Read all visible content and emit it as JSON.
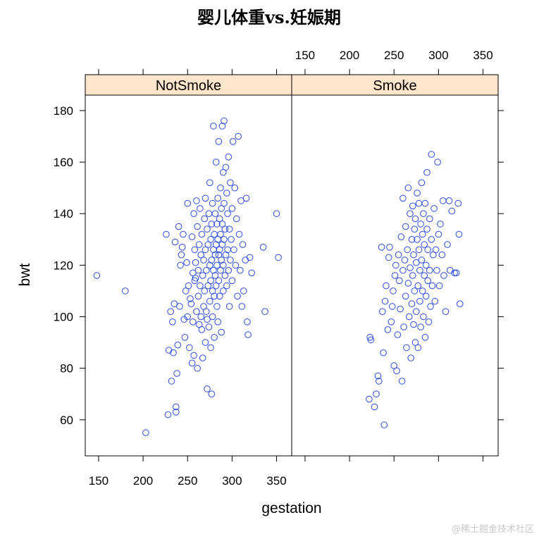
{
  "chart_data": {
    "type": "scatter",
    "title": "婴儿体重vs.妊娠期",
    "xlabel": "gestation",
    "ylabel": "bwt",
    "xlim": [
      135,
      367
    ],
    "ylim": [
      46,
      186
    ],
    "x_ticks": [
      150,
      200,
      250,
      300,
      350
    ],
    "y_ticks": [
      60,
      80,
      100,
      120,
      140,
      160,
      180
    ],
    "grid": false,
    "colors": {
      "points": "#2b4ce0",
      "strip": "#ffe5cc",
      "frame": "#000000"
    },
    "panels": [
      {
        "name": "NotSmoke",
        "points": [
          [
            148,
            116
          ],
          [
            180,
            110
          ],
          [
            203,
            55
          ],
          [
            226,
            132
          ],
          [
            228,
            62
          ],
          [
            229,
            87
          ],
          [
            231,
            102
          ],
          [
            232,
            75
          ],
          [
            233,
            98
          ],
          [
            234,
            86
          ],
          [
            235,
            105
          ],
          [
            236,
            129
          ],
          [
            237,
            65
          ],
          [
            237,
            63
          ],
          [
            238,
            78
          ],
          [
            239,
            89
          ],
          [
            240,
            135
          ],
          [
            241,
            104
          ],
          [
            242,
            120
          ],
          [
            243,
            124
          ],
          [
            244,
            127
          ],
          [
            245,
            132
          ],
          [
            246,
            99
          ],
          [
            247,
            92
          ],
          [
            248,
            110
          ],
          [
            249,
            121
          ],
          [
            250,
            100
          ],
          [
            250,
            144
          ],
          [
            251,
            112
          ],
          [
            252,
            88
          ],
          [
            253,
            107
          ],
          [
            254,
            105
          ],
          [
            255,
            131
          ],
          [
            255,
            82
          ],
          [
            256,
            117
          ],
          [
            256,
            98
          ],
          [
            257,
            140
          ],
          [
            257,
            85
          ],
          [
            258,
            126
          ],
          [
            258,
            114
          ],
          [
            259,
            115
          ],
          [
            259,
            121
          ],
          [
            260,
            145
          ],
          [
            260,
            102
          ],
          [
            261,
            135
          ],
          [
            261,
            80
          ],
          [
            262,
            108
          ],
          [
            262,
            118
          ],
          [
            263,
            128
          ],
          [
            263,
            97
          ],
          [
            264,
            142
          ],
          [
            264,
            112
          ],
          [
            265,
            100
          ],
          [
            265,
            124
          ],
          [
            266,
            95
          ],
          [
            266,
            132
          ],
          [
            267,
            116
          ],
          [
            267,
            84
          ],
          [
            268,
            122
          ],
          [
            268,
            104
          ],
          [
            269,
            138
          ],
          [
            269,
            110
          ],
          [
            270,
            126
          ],
          [
            270,
            90
          ],
          [
            270,
            146
          ],
          [
            271,
            118
          ],
          [
            271,
            102
          ],
          [
            272,
            134
          ],
          [
            272,
            99
          ],
          [
            272,
            72
          ],
          [
            273,
            128
          ],
          [
            273,
            112
          ],
          [
            274,
            140
          ],
          [
            274,
            96
          ],
          [
            275,
            120
          ],
          [
            275,
            106
          ],
          [
            275,
            152
          ],
          [
            276,
            130
          ],
          [
            276,
            114
          ],
          [
            276,
            88
          ],
          [
            277,
            136
          ],
          [
            277,
            122
          ],
          [
            277,
            70
          ],
          [
            278,
            144
          ],
          [
            278,
            110
          ],
          [
            278,
            100
          ],
          [
            279,
            126
          ],
          [
            279,
            118
          ],
          [
            279,
            174
          ],
          [
            280,
            132
          ],
          [
            280,
            108
          ],
          [
            280,
            92
          ],
          [
            281,
            140
          ],
          [
            281,
            124
          ],
          [
            281,
            116
          ],
          [
            282,
            128
          ],
          [
            282,
            112
          ],
          [
            282,
            160
          ],
          [
            283,
            136
          ],
          [
            283,
            120
          ],
          [
            283,
            104
          ],
          [
            284,
            146
          ],
          [
            284,
            130
          ],
          [
            284,
            98
          ],
          [
            285,
            124
          ],
          [
            285,
            114
          ],
          [
            285,
            168
          ],
          [
            286,
            138
          ],
          [
            286,
            126
          ],
          [
            286,
            108
          ],
          [
            287,
            150
          ],
          [
            287,
            132
          ],
          [
            287,
            118
          ],
          [
            288,
            142
          ],
          [
            288,
            122
          ],
          [
            288,
            94
          ],
          [
            289,
            136
          ],
          [
            289,
            128
          ],
          [
            289,
            174
          ],
          [
            290,
            156
          ],
          [
            290,
            120
          ],
          [
            290,
            110
          ],
          [
            291,
            144
          ],
          [
            291,
            130
          ],
          [
            291,
            176
          ],
          [
            292,
            134
          ],
          [
            292,
            116
          ],
          [
            293,
            158
          ],
          [
            293,
            124
          ],
          [
            294,
            148
          ],
          [
            294,
            112
          ],
          [
            295,
            140
          ],
          [
            295,
            126
          ],
          [
            296,
            162
          ],
          [
            296,
            118
          ],
          [
            297,
            134
          ],
          [
            297,
            104
          ],
          [
            298,
            152
          ],
          [
            298,
            122
          ],
          [
            299,
            130
          ],
          [
            300,
            142
          ],
          [
            300,
            114
          ],
          [
            301,
            168
          ],
          [
            302,
            126
          ],
          [
            303,
            150
          ],
          [
            304,
            120
          ],
          [
            305,
            138
          ],
          [
            306,
            108
          ],
          [
            307,
            170
          ],
          [
            308,
            132
          ],
          [
            309,
            118
          ],
          [
            310,
            145
          ],
          [
            311,
            104
          ],
          [
            312,
            128
          ],
          [
            313,
            110
          ],
          [
            315,
            122
          ],
          [
            316,
            146
          ],
          [
            317,
            98
          ],
          [
            318,
            93
          ],
          [
            320,
            123
          ],
          [
            322,
            117
          ],
          [
            335,
            127
          ],
          [
            337,
            102
          ],
          [
            350,
            140
          ],
          [
            352,
            123
          ]
        ]
      },
      {
        "name": "Smoke",
        "points": [
          [
            222,
            68
          ],
          [
            223,
            92
          ],
          [
            224,
            91
          ],
          [
            228,
            65
          ],
          [
            230,
            70
          ],
          [
            232,
            77
          ],
          [
            233,
            75
          ],
          [
            236,
            127
          ],
          [
            237,
            102
          ],
          [
            238,
            86
          ],
          [
            239,
            58
          ],
          [
            240,
            106
          ],
          [
            241,
            112
          ],
          [
            243,
            95
          ],
          [
            244,
            123
          ],
          [
            245,
            127
          ],
          [
            247,
            98
          ],
          [
            248,
            104
          ],
          [
            249,
            110
          ],
          [
            250,
            81
          ],
          [
            251,
            116
          ],
          [
            252,
            120
          ],
          [
            253,
            79
          ],
          [
            254,
            93
          ],
          [
            255,
            124
          ],
          [
            256,
            114
          ],
          [
            257,
            103
          ],
          [
            258,
            131
          ],
          [
            259,
            75
          ],
          [
            260,
            118
          ],
          [
            260,
            146
          ],
          [
            261,
            96
          ],
          [
            262,
            122
          ],
          [
            263,
            108
          ],
          [
            263,
            135
          ],
          [
            264,
            88
          ],
          [
            265,
            126
          ],
          [
            266,
            113
          ],
          [
            266,
            150
          ],
          [
            267,
            100
          ],
          [
            268,
            119
          ],
          [
            268,
            140
          ],
          [
            269,
            84
          ],
          [
            270,
            130
          ],
          [
            270,
            105
          ],
          [
            271,
            116
          ],
          [
            271,
            143
          ],
          [
            272,
            97
          ],
          [
            272,
            124
          ],
          [
            273,
            134
          ],
          [
            273,
            110
          ],
          [
            274,
            90
          ],
          [
            274,
            138
          ],
          [
            275,
            121
          ],
          [
            275,
            102
          ],
          [
            276,
            130
          ],
          [
            276,
            148
          ],
          [
            277,
            112
          ],
          [
            277,
            88
          ],
          [
            278,
            126
          ],
          [
            278,
            144
          ],
          [
            279,
            106
          ],
          [
            279,
            118
          ],
          [
            280,
            136
          ],
          [
            280,
            96
          ],
          [
            281,
            122
          ],
          [
            281,
            152
          ],
          [
            282,
            110
          ],
          [
            282,
            132
          ],
          [
            283,
            100
          ],
          [
            283,
            140
          ],
          [
            284,
            116
          ],
          [
            284,
            128
          ],
          [
            285,
            92
          ],
          [
            285,
            144
          ],
          [
            286,
            120
          ],
          [
            286,
            108
          ],
          [
            287,
            134
          ],
          [
            287,
            156
          ],
          [
            288,
            114
          ],
          [
            288,
            126
          ],
          [
            289,
            98
          ],
          [
            290,
            138
          ],
          [
            290,
            118
          ],
          [
            291,
            104
          ],
          [
            292,
            130
          ],
          [
            292,
            163
          ],
          [
            293,
            112
          ],
          [
            294,
            124
          ],
          [
            295,
            142
          ],
          [
            296,
            106
          ],
          [
            297,
            126
          ],
          [
            298,
            118
          ],
          [
            299,
            160
          ],
          [
            300,
            132
          ],
          [
            301,
            112
          ],
          [
            302,
            136
          ],
          [
            304,
            124
          ],
          [
            305,
            145
          ],
          [
            306,
            116
          ],
          [
            308,
            102
          ],
          [
            310,
            128
          ],
          [
            312,
            145
          ],
          [
            313,
            118
          ],
          [
            315,
            141
          ],
          [
            318,
            117
          ],
          [
            320,
            117
          ],
          [
            322,
            144
          ],
          [
            323,
            132
          ],
          [
            324,
            105
          ]
        ]
      }
    ]
  },
  "watermark": "@稀土掘金技术社区"
}
